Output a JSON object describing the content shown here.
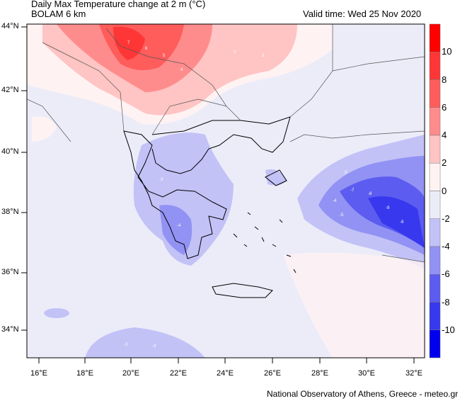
{
  "title": "Daily Max Temperature change at 2 m (°C)",
  "subtitle": "BOLAM 6 km",
  "valid_time": "Valid time: Wed 25 Nov 2020",
  "footer": "National Observatory of Athens, Greece - meteo.gr",
  "lat_ticks": [
    "44°N",
    "42°N",
    "40°N",
    "38°N",
    "36°N",
    "34°N"
  ],
  "lon_ticks": [
    "16°E",
    "18°E",
    "20°E",
    "22°E",
    "24°E",
    "26°E",
    "28°E",
    "30°E",
    "32°E"
  ],
  "colorbar": {
    "labels": [
      "10",
      "8",
      "6",
      "4",
      "2",
      "0",
      "-2",
      "-4",
      "-6",
      "-8",
      "-10"
    ],
    "colors": [
      "#ff0000",
      "#ff3636",
      "#ff5c5c",
      "#ff8c8c",
      "#ffc4c4",
      "#fff2f2",
      "#ececf9",
      "#c2c2f7",
      "#9292f4",
      "#5c5cf0",
      "#3838ee",
      "#0000ee"
    ]
  },
  "contour_labels": [
    "7",
    "6",
    "5",
    "4",
    "3",
    "3",
    "-3",
    "-4",
    "-5",
    "-7",
    "-8",
    "-9",
    "-9",
    "-4",
    "-3",
    "-3",
    "-3"
  ]
}
